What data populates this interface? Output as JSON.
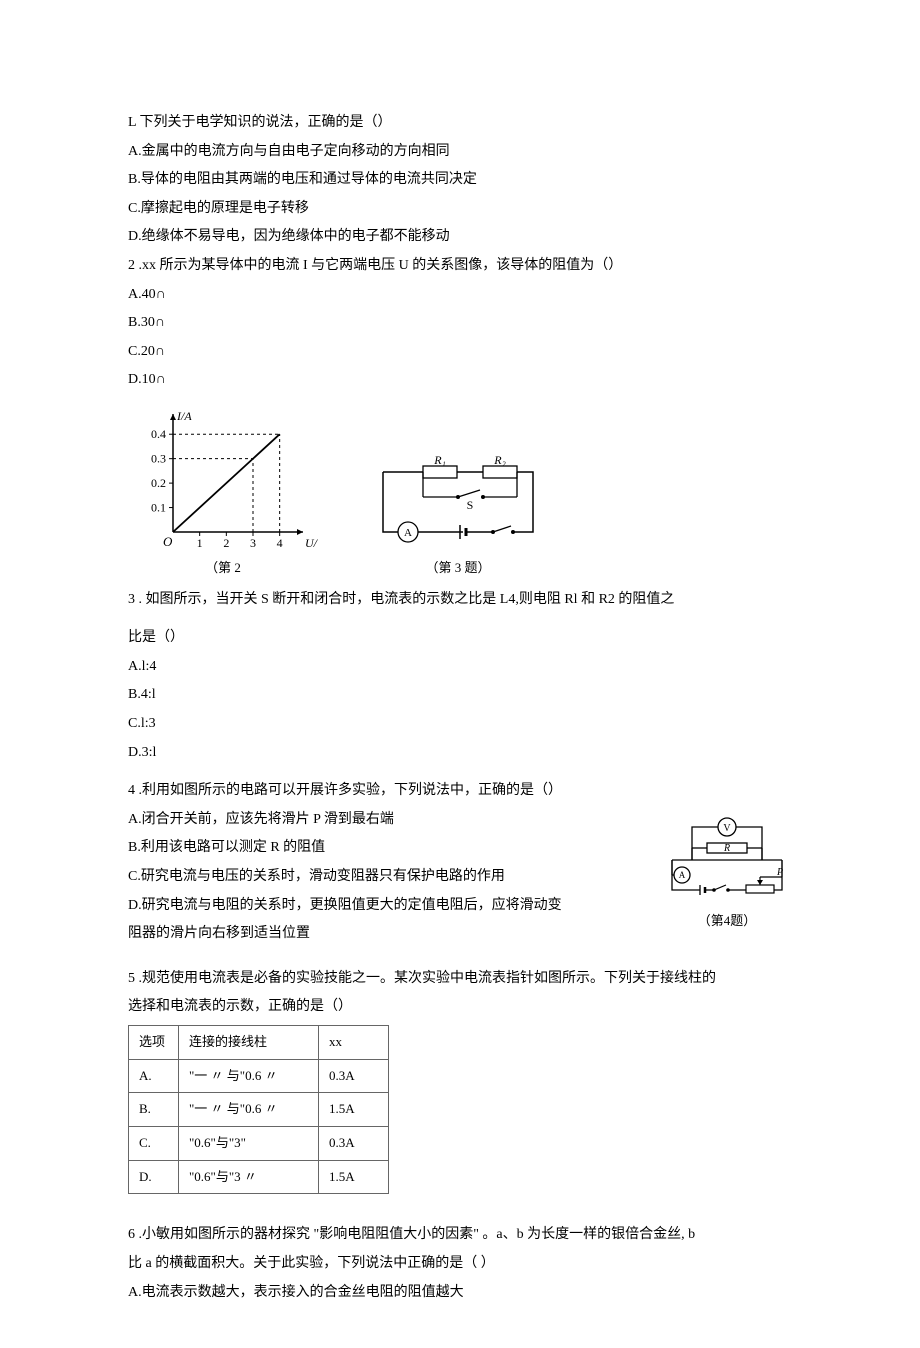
{
  "q1": {
    "stem": "L 下列关于电学知识的说法，正确的是（）",
    "optA": "A.金属中的电流方向与自由电子定向移动的方向相同",
    "optB": "B.导体的电阻由其两端的电压和通过导体的电流共同决定",
    "optC": "C.摩擦起电的原理是电子转移",
    "optD": "D.绝缘体不易导电，因为绝缘体中的电子都不能移动"
  },
  "q2": {
    "stem": "2   .xx 所示为某导体中的电流 I 与它两端电压 U 的关系图像，该导体的阻值为（）",
    "optA": "A.40∩",
    "optB": "B.30∩",
    "optC": "C.20∩",
    "optD": "D.10∩",
    "chart": {
      "type": "line",
      "x_label": "U/V",
      "y_label": "I/A",
      "x_ticks": [
        1,
        2,
        3,
        4
      ],
      "y_ticks": [
        0.1,
        0.2,
        0.3,
        0.4
      ],
      "xlim": [
        0,
        4.5
      ],
      "ylim": [
        0,
        0.45
      ],
      "line_points": [
        [
          0,
          0
        ],
        [
          4,
          0.4
        ]
      ],
      "dashed_refs": [
        [
          3,
          0.3
        ],
        [
          4,
          0.4
        ]
      ],
      "axis_color": "#000000",
      "line_color": "#000000",
      "dash_color": "#000000",
      "bg_color": "#ffffff"
    },
    "circuit": {
      "labels": {
        "R1": "R₁",
        "R2": "R₂",
        "S": "S",
        "A": "A"
      },
      "stroke_color": "#000000"
    },
    "caption_left": "（第 2",
    "caption_right": "（第 3 题）"
  },
  "q3": {
    "stem": "3   . 如图所示，当开关 S 断开和闭合时，电流表的示数之比是 L4,则电阻 Rl 和 R2 的阻值之",
    "stem_cont": "比是（）",
    "optA": "A.l:4",
    "optB": "B.4:l",
    "optC": "C.l:3",
    "optD": "D.3:l"
  },
  "q4": {
    "stem": "4   .利用如图所示的电路可以开展许多实验，下列说法中，正确的是（）",
    "optA": "A.闭合开关前，应该先将滑片 P 滑到最右端",
    "optB": "B.利用该电路可以测定 R 的阻值",
    "optC": "C.研究电流与电压的关系时，滑动变阻器只有保护电路的作用",
    "optD": "D.研究电流与电阻的关系时，更换阻值更大的定值电阻后，应将滑动变",
    "optD_cont": "阻器的滑片向右移到适当位置",
    "circuit": {
      "labels": {
        "V": "V",
        "R": "R",
        "A": "A",
        "P": "P"
      },
      "stroke_color": "#000000"
    },
    "caption": "（第4题）"
  },
  "q5": {
    "stem": "5   .规范使用电流表是必备的实验技能之一。某次实验中电流表指针如图所示。下列关于接线柱的",
    "stem_cont": "选择和电流表的示数，正确的是（）",
    "table": {
      "headers": [
        "选项",
        "连接的接线柱",
        "xx"
      ],
      "rows": [
        [
          "A.",
          "\"一 〃 与\"0.6 〃",
          "0.3A"
        ],
        [
          "B.",
          "\"一 〃 与\"0.6 〃",
          "1.5A"
        ],
        [
          "C.",
          "\"0.6\"与\"3\"",
          "0.3A"
        ],
        [
          "D.",
          "\"0.6\"与\"3 〃",
          "1.5A"
        ]
      ],
      "col_widths": [
        "50px",
        "140px",
        "70px"
      ]
    }
  },
  "q6": {
    "stem": "6   .小敏用如图所示的器材探究 \"影响电阻阻值大小的因素\" 。a、b 为长度一样的银倍合金丝, b",
    "stem_cont": "比 a 的横截面积大。关于此实验，下列说法中正确的是（          ）",
    "optA": "A.电流表示数越大，表示接入的合金丝电阻的阻值越大"
  }
}
